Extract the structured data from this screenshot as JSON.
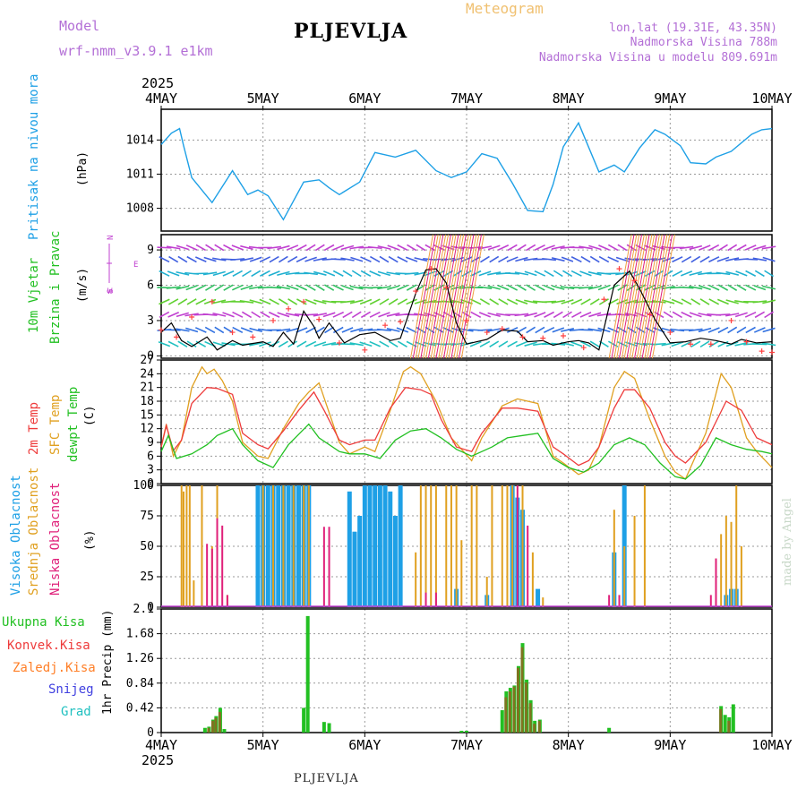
{
  "header": {
    "model_label": "Model",
    "model_name": "wrf-nmm_v3.9.1 e1km",
    "station": "PLJEVLJA",
    "product": "Meteogram",
    "lonlat": "lon,lat (19.31E, 43.35N)",
    "altitude": "Nadmorska Visina 788m",
    "model_altitude": "Nadmorska Visina u modelu 809.691m"
  },
  "footer": {
    "station": "PLJEVLJA",
    "credit": "made by Angel"
  },
  "colors": {
    "pressure": "#1ea0e6",
    "wind_label": "#22c022",
    "wind_dir": "#c040d0",
    "temp2m": "#ee3b3b",
    "sfc_temp": "#e0a020",
    "dewpt": "#22c022",
    "high_cloud": "#1ea0e6",
    "mid_cloud": "#e0a020",
    "low_cloud": "#e0207a",
    "total_precip": "#22c022",
    "conv_precip": "#ee3b3b",
    "frozen": "#ff7f27",
    "snow": "#4040e0",
    "hail": "#20c0c0",
    "gust": "#ff4040"
  },
  "chart_data": [
    {
      "id": "pressure",
      "type": "line",
      "year_top": "2025",
      "x_labels": [
        "4MAY",
        "5MAY",
        "6MAY",
        "7MAY",
        "8MAY",
        "9MAY",
        "10MAY"
      ],
      "ylabel": "Pritisak na nivou mora",
      "unit": "(hPa)",
      "yticks": [
        1008,
        1011,
        1014
      ],
      "ylim": [
        1006,
        1016.7
      ],
      "grid": true,
      "series": [
        {
          "name": "Pritisak na nivou mora",
          "t": [
            0,
            0.1,
            0.18,
            0.22,
            0.3,
            0.5,
            0.7,
            0.85,
            0.95,
            1.05,
            1.2,
            1.4,
            1.55,
            1.65,
            1.75,
            1.95,
            2.1,
            2.3,
            2.5,
            2.7,
            2.85,
            3.0,
            3.15,
            3.3,
            3.45,
            3.6,
            3.75,
            3.85,
            3.95,
            4.1,
            4.3,
            4.45,
            4.55,
            4.7,
            4.85,
            4.95,
            5.1,
            5.2,
            5.35,
            5.45,
            5.6,
            5.8,
            5.9,
            6.0
          ],
          "values": [
            1013.6,
            1014.6,
            1015.0,
            1013.5,
            1010.7,
            1008.5,
            1011.3,
            1009.2,
            1009.6,
            1009.1,
            1007.0,
            1010.3,
            1010.5,
            1009.8,
            1009.2,
            1010.3,
            1012.9,
            1012.5,
            1013.1,
            1011.3,
            1010.7,
            1011.2,
            1012.8,
            1012.4,
            1010.2,
            1007.8,
            1007.7,
            1010.1,
            1013.4,
            1015.5,
            1011.2,
            1011.8,
            1011.2,
            1013.3,
            1014.9,
            1014.5,
            1013.5,
            1012.0,
            1011.9,
            1012.5,
            1013.0,
            1014.5,
            1014.9,
            1015.0
          ]
        }
      ]
    },
    {
      "id": "wind",
      "type": "line",
      "ylabel1": "10m Vjetar",
      "ylabel2": "Brzina i Pravac",
      "unit": "(m/s)",
      "compass": [
        "W",
        "N",
        "E",
        "S"
      ],
      "yticks": [
        0,
        3,
        6,
        9
      ],
      "ylim": [
        -0.2,
        10.3
      ],
      "grid": true,
      "series": [
        {
          "name": "Brzina",
          "t": [
            0,
            0.1,
            0.2,
            0.3,
            0.45,
            0.55,
            0.7,
            0.8,
            1.0,
            1.1,
            1.2,
            1.3,
            1.4,
            1.5,
            1.55,
            1.65,
            1.8,
            1.95,
            2.1,
            2.25,
            2.35,
            2.5,
            2.6,
            2.7,
            2.8,
            2.9,
            3.0,
            3.2,
            3.35,
            3.5,
            3.6,
            3.75,
            3.85,
            4.0,
            4.1,
            4.2,
            4.3,
            4.45,
            4.6,
            4.7,
            4.85,
            5.0,
            5.15,
            5.3,
            5.45,
            5.6,
            5.7,
            5.85,
            6.0
          ],
          "values": [
            2.0,
            2.8,
            1.3,
            0.8,
            1.6,
            0.5,
            1.3,
            0.9,
            1.2,
            0.8,
            2.0,
            1.0,
            3.8,
            2.5,
            1.5,
            2.8,
            1.1,
            1.8,
            2.0,
            1.3,
            1.5,
            5.3,
            7.3,
            7.4,
            6.2,
            2.8,
            1.0,
            1.4,
            2.2,
            2.1,
            1.2,
            1.3,
            0.9,
            1.2,
            1.3,
            1.1,
            0.5,
            6.0,
            7.2,
            5.7,
            3.1,
            1.1,
            1.2,
            1.5,
            1.3,
            1.0,
            1.4,
            1.1,
            1.2
          ]
        },
        {
          "name": "Udari",
          "t": [
            0,
            0.15,
            0.3,
            0.5,
            0.7,
            0.9,
            1.1,
            1.25,
            1.4,
            1.55,
            1.75,
            2.0,
            2.2,
            2.35,
            2.5,
            2.65,
            2.8,
            3.0,
            3.2,
            3.35,
            3.55,
            3.75,
            3.95,
            4.15,
            4.35,
            4.5,
            4.65,
            4.8,
            5.0,
            5.2,
            5.4,
            5.6,
            5.75,
            5.9,
            6.0
          ],
          "values": [
            2.2,
            1.6,
            3.3,
            4.6,
            2.0,
            1.6,
            3.0,
            4.0,
            4.6,
            3.1,
            1.1,
            0.5,
            2.6,
            2.9,
            5.5,
            7.4,
            5.8,
            3.0,
            2.0,
            2.3,
            1.6,
            1.5,
            1.7,
            0.7,
            4.8,
            7.4,
            6.4,
            3.5,
            2.0,
            1.0,
            1.0,
            3.0,
            1.2,
            0.4,
            0.3
          ]
        }
      ]
    },
    {
      "id": "temperature",
      "type": "line",
      "ylabels": [
        "2m Temp",
        "SFC Temp",
        "dewpt Temp"
      ],
      "unit": "(C)",
      "yticks": [
        0,
        3,
        6,
        9,
        12,
        15,
        18,
        21,
        24,
        27
      ],
      "ylim": [
        0,
        27
      ],
      "grid": true,
      "series": [
        {
          "name": "2m Temp",
          "t": [
            0,
            0.05,
            0.12,
            0.2,
            0.3,
            0.45,
            0.55,
            0.7,
            0.8,
            0.95,
            1.05,
            1.2,
            1.35,
            1.5,
            1.6,
            1.75,
            1.85,
            2.0,
            2.1,
            2.25,
            2.4,
            2.55,
            2.65,
            2.75,
            2.9,
            3.05,
            3.15,
            3.35,
            3.5,
            3.7,
            3.85,
            3.95,
            4.1,
            4.2,
            4.3,
            4.45,
            4.55,
            4.65,
            4.8,
            4.95,
            5.05,
            5.15,
            5.35,
            5.55,
            5.7,
            5.85,
            6.0
          ],
          "values": [
            8.0,
            12.7,
            7.2,
            9.5,
            17.5,
            21.0,
            20.8,
            19.5,
            11.0,
            8.5,
            7.6,
            11.5,
            16.0,
            20.0,
            16.0,
            9.5,
            8.5,
            9.5,
            9.5,
            16.5,
            21.0,
            20.5,
            19.5,
            14.0,
            8.0,
            7.0,
            11.0,
            16.5,
            16.5,
            15.8,
            8.0,
            6.5,
            4.0,
            5.0,
            8.0,
            16.5,
            20.5,
            20.5,
            16.5,
            9.0,
            6.0,
            4.5,
            9.0,
            18.0,
            16.0,
            10.0,
            8.5
          ]
        },
        {
          "name": "SFC Temp",
          "t": [
            0,
            0.05,
            0.12,
            0.2,
            0.3,
            0.4,
            0.45,
            0.52,
            0.6,
            0.7,
            0.8,
            0.95,
            1.05,
            1.2,
            1.35,
            1.45,
            1.55,
            1.75,
            1.85,
            2.0,
            2.1,
            2.25,
            2.38,
            2.45,
            2.55,
            2.7,
            2.85,
            3.05,
            3.15,
            3.35,
            3.5,
            3.7,
            3.85,
            3.95,
            4.1,
            4.2,
            4.3,
            4.45,
            4.55,
            4.65,
            4.8,
            4.95,
            5.05,
            5.15,
            5.35,
            5.5,
            5.6,
            5.75,
            5.85,
            6.0
          ],
          "values": [
            8.0,
            13.0,
            6.0,
            9.5,
            21.0,
            25.5,
            24.0,
            25.0,
            22.5,
            18.0,
            9.0,
            6.0,
            5.5,
            12.0,
            17.5,
            20.0,
            22.0,
            9.0,
            6.5,
            8.0,
            7.0,
            16.0,
            24.5,
            25.5,
            24.0,
            18.0,
            10.0,
            5.0,
            10.0,
            17.0,
            18.5,
            17.5,
            6.0,
            4.5,
            2.0,
            3.0,
            8.0,
            21.0,
            24.5,
            23.0,
            14.0,
            6.0,
            2.5,
            1.0,
            11.0,
            24.0,
            21.0,
            10.0,
            7.0,
            3.5
          ]
        },
        {
          "name": "dewpt Temp",
          "t": [
            0,
            0.07,
            0.15,
            0.3,
            0.45,
            0.55,
            0.7,
            0.8,
            0.95,
            1.1,
            1.25,
            1.45,
            1.55,
            1.75,
            1.85,
            2.0,
            2.15,
            2.3,
            2.45,
            2.6,
            2.75,
            2.9,
            3.05,
            3.25,
            3.4,
            3.55,
            3.7,
            3.85,
            4.0,
            4.15,
            4.3,
            4.45,
            4.6,
            4.75,
            4.9,
            5.05,
            5.15,
            5.3,
            5.45,
            5.6,
            5.75,
            5.9,
            6.0
          ],
          "values": [
            7.0,
            10.5,
            5.5,
            6.5,
            8.5,
            10.5,
            12.0,
            8.5,
            5.0,
            3.5,
            8.5,
            13.0,
            10.0,
            7.0,
            6.5,
            6.5,
            5.5,
            9.5,
            11.5,
            12.0,
            10.0,
            7.5,
            6.0,
            8.0,
            10.0,
            10.5,
            11.0,
            5.5,
            3.5,
            2.5,
            4.5,
            8.5,
            10.0,
            8.5,
            4.5,
            1.5,
            1.0,
            4.0,
            10.0,
            8.5,
            7.5,
            7.0,
            6.5
          ]
        }
      ]
    },
    {
      "id": "clouds",
      "type": "bar",
      "ylabels": [
        "Visoka Oblacnost",
        "Srednja Oblacnost",
        "Niska Oblacnost"
      ],
      "unit": "(%)",
      "yticks": [
        0,
        25,
        50,
        75,
        100
      ],
      "ylim": [
        0,
        100
      ],
      "grid": true,
      "series": [
        {
          "name": "Visoka Oblacnost",
          "t": [
            0.95,
            1.0,
            1.05,
            1.1,
            1.15,
            1.2,
            1.25,
            1.3,
            1.35,
            1.4,
            1.45,
            1.85,
            1.9,
            1.95,
            2.0,
            2.05,
            2.1,
            2.15,
            2.2,
            2.25,
            2.3,
            2.35,
            2.9,
            3.2,
            3.45,
            3.5,
            3.55,
            3.7,
            4.45,
            4.55,
            5.55,
            5.6,
            5.65
          ],
          "values": [
            100,
            100,
            100,
            100,
            100,
            100,
            100,
            100,
            100,
            100,
            100,
            95,
            62,
            75,
            100,
            100,
            100,
            100,
            100,
            95,
            75,
            100,
            15,
            10,
            100,
            90,
            80,
            15,
            45,
            100,
            10,
            15,
            15
          ]
        },
        {
          "name": "Srednja Oblacnost",
          "t": [
            0.2,
            0.22,
            0.25,
            0.28,
            0.32,
            0.4,
            0.5,
            0.55,
            0.65,
            1.0,
            1.1,
            1.2,
            1.3,
            1.4,
            1.45,
            2.5,
            2.55,
            2.6,
            2.65,
            2.7,
            2.8,
            2.85,
            2.9,
            2.95,
            3.05,
            3.1,
            3.2,
            3.25,
            3.35,
            3.4,
            3.45,
            3.55,
            3.65,
            3.75,
            4.45,
            4.55,
            4.65,
            4.75,
            5.45,
            5.5,
            5.55,
            5.6,
            5.65,
            5.7
          ],
          "values": [
            100,
            95,
            100,
            100,
            22,
            100,
            50,
            100,
            10,
            100,
            100,
            100,
            100,
            100,
            100,
            45,
            100,
            100,
            100,
            100,
            100,
            100,
            100,
            55,
            100,
            100,
            25,
            100,
            100,
            100,
            100,
            100,
            45,
            8,
            80,
            50,
            75,
            100,
            40,
            60,
            75,
            70,
            100,
            50
          ]
        },
        {
          "name": "Niska Oblacnost",
          "t": [
            0.45,
            0.5,
            0.55,
            0.6,
            0.65,
            1.6,
            1.65,
            2.6,
            2.7,
            3.5,
            3.6,
            4.4,
            4.5,
            5.4,
            5.45
          ],
          "values": [
            52,
            48,
            73,
            67,
            10,
            66,
            66,
            12,
            12,
            100,
            67,
            10,
            10,
            10,
            40
          ]
        }
      ]
    },
    {
      "id": "precip",
      "type": "bar",
      "legend": [
        "Ukupna Kisa",
        "Konvek.Kisa",
        "Zaledj.Kisa",
        "Snijeg",
        "Grad"
      ],
      "ylabel": "1hr Precip (mm)",
      "yticks": [
        0,
        0.42,
        0.84,
        1.26,
        1.68,
        2.1
      ],
      "ylim": [
        0,
        2.1
      ],
      "grid": true,
      "x_labels": [
        "4MAY",
        "5MAY",
        "6MAY",
        "7MAY",
        "8MAY",
        "9MAY",
        "10MAY"
      ],
      "year_bottom": "2025",
      "series": [
        {
          "name": "Ukupna Kisa",
          "t": [
            0.43,
            0.47,
            0.51,
            0.54,
            0.58,
            0.62,
            1.4,
            1.44,
            1.6,
            1.65,
            2.95,
            3.0,
            3.35,
            3.39,
            3.43,
            3.47,
            3.51,
            3.55,
            3.59,
            3.63,
            3.67,
            3.72,
            4.4,
            5.5,
            5.54,
            5.58,
            5.62
          ],
          "values": [
            0.08,
            0.1,
            0.22,
            0.28,
            0.42,
            0.06,
            0.42,
            1.98,
            0.18,
            0.16,
            0.03,
            0.03,
            0.38,
            0.7,
            0.76,
            0.8,
            1.13,
            1.52,
            0.9,
            0.55,
            0.2,
            0.22,
            0.08,
            0.45,
            0.3,
            0.26,
            0.48
          ]
        },
        {
          "name": "Konvek.Kisa",
          "t": [
            0.47,
            0.51,
            0.54,
            0.58,
            3.39,
            3.43,
            3.47,
            3.51,
            3.55,
            3.59,
            3.63,
            3.67,
            3.72,
            5.5,
            5.58
          ],
          "values": [
            0.08,
            0.2,
            0.25,
            0.35,
            0.6,
            0.7,
            0.78,
            1.1,
            1.45,
            0.85,
            0.5,
            0.15,
            0.2,
            0.4,
            0.2
          ]
        }
      ]
    }
  ]
}
